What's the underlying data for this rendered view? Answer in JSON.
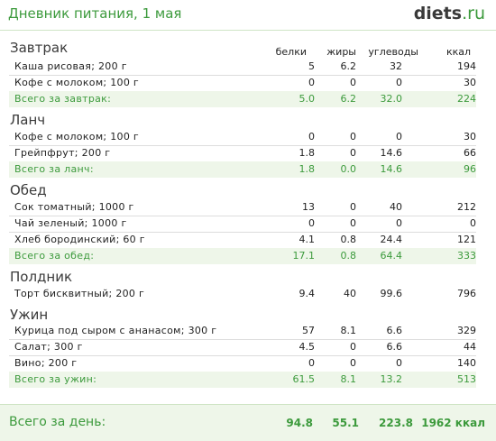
{
  "header": {
    "title": "Дневник питания, 1 мая",
    "logo_main": "diets",
    "logo_suffix": ".ru"
  },
  "columns": {
    "protein": "белки",
    "fat": "жиры",
    "carbs": "углеводы",
    "kcal": "ккал"
  },
  "meals": [
    {
      "name": "Завтрак",
      "items": [
        {
          "name": "Каша рисовая; 200 г",
          "protein": "5",
          "fat": "6.2",
          "carbs": "32",
          "kcal": "194"
        },
        {
          "name": "Кофе с молоком; 100 г",
          "protein": "0",
          "fat": "0",
          "carbs": "0",
          "kcal": "30"
        }
      ],
      "total": {
        "name": "Всего за завтрак:",
        "protein": "5.0",
        "fat": "6.2",
        "carbs": "32.0",
        "kcal": "224"
      }
    },
    {
      "name": "Ланч",
      "items": [
        {
          "name": "Кофе с молоком; 100 г",
          "protein": "0",
          "fat": "0",
          "carbs": "0",
          "kcal": "30"
        },
        {
          "name": "Грейпфрут; 200 г",
          "protein": "1.8",
          "fat": "0",
          "carbs": "14.6",
          "kcal": "66"
        }
      ],
      "total": {
        "name": "Всего за ланч:",
        "protein": "1.8",
        "fat": "0.0",
        "carbs": "14.6",
        "kcal": "96"
      }
    },
    {
      "name": "Обед",
      "items": [
        {
          "name": "Сок томатный; 1000 г",
          "protein": "13",
          "fat": "0",
          "carbs": "40",
          "kcal": "212"
        },
        {
          "name": "Чай зеленый; 1000 г",
          "protein": "0",
          "fat": "0",
          "carbs": "0",
          "kcal": "0"
        },
        {
          "name": "Хлеб бородинский; 60 г",
          "protein": "4.1",
          "fat": "0.8",
          "carbs": "24.4",
          "kcal": "121"
        }
      ],
      "total": {
        "name": "Всего за обед:",
        "protein": "17.1",
        "fat": "0.8",
        "carbs": "64.4",
        "kcal": "333"
      }
    },
    {
      "name": "Полдник",
      "items": [
        {
          "name": "Торт бисквитный; 200 г",
          "protein": "9.4",
          "fat": "40",
          "carbs": "99.6",
          "kcal": "796"
        }
      ]
    },
    {
      "name": "Ужин",
      "items": [
        {
          "name": "Курица под сыром с ананасом; 300 г",
          "protein": "57",
          "fat": "8.1",
          "carbs": "6.6",
          "kcal": "329"
        },
        {
          "name": "Салат; 300 г",
          "protein": "4.5",
          "fat": "0",
          "carbs": "6.6",
          "kcal": "44"
        },
        {
          "name": "Вино; 200 г",
          "protein": "0",
          "fat": "0",
          "carbs": "0",
          "kcal": "140"
        }
      ],
      "total": {
        "name": "Всего за ужин:",
        "protein": "61.5",
        "fat": "8.1",
        "carbs": "13.2",
        "kcal": "513"
      }
    }
  ],
  "day_total": {
    "label": "Всего за день:",
    "protein": "94.8",
    "fat": "55.1",
    "carbs": "223.8",
    "kcal": "1962 ккал"
  }
}
